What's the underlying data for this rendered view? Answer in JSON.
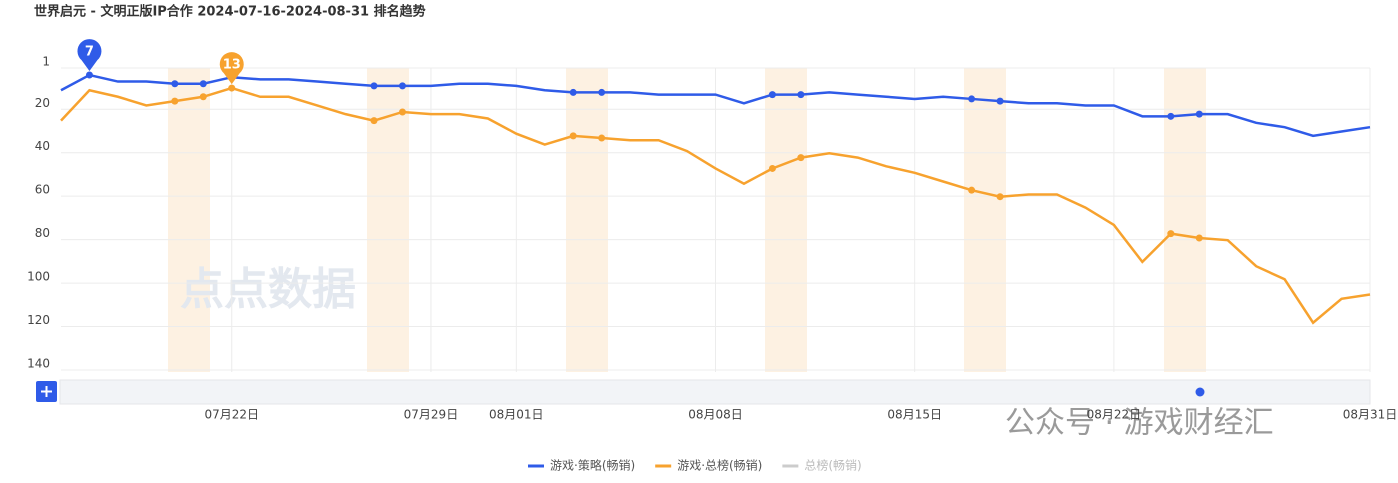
{
  "chart_data": {
    "type": "line",
    "title": "世界启元 - 文明正版IP合作 2024-07-16-2024-08-31 排名趋势",
    "categories": [
      null,
      null,
      null,
      null,
      null,
      null,
      "07月22日",
      null,
      null,
      null,
      null,
      null,
      null,
      "07月29日",
      null,
      null,
      "08月01日",
      null,
      null,
      null,
      null,
      null,
      null,
      "08月08日",
      null,
      null,
      null,
      null,
      null,
      null,
      "08月15日",
      null,
      null,
      null,
      null,
      null,
      null,
      "08月22日",
      null,
      null,
      null,
      null,
      null,
      null,
      null,
      null,
      "08月31日"
    ],
    "series": [
      {
        "name": "游戏·策略(畅销)",
        "color": "#2f5be8",
        "highlight": 7,
        "values": [
          14,
          7,
          10,
          10,
          11,
          11,
          8,
          9,
          9,
          10,
          11,
          12,
          12,
          12,
          11,
          11,
          12,
          14,
          15,
          15,
          15,
          16,
          16,
          16,
          20,
          16,
          16,
          15,
          16,
          17,
          18,
          17,
          18,
          19,
          20,
          20,
          21,
          21,
          26,
          26,
          25,
          25,
          29,
          31,
          35,
          33,
          31
        ]
      },
      {
        "name": "游戏·总榜(畅销)",
        "color": "#f7a22e",
        "highlight": 13,
        "values": [
          28,
          14,
          17,
          21,
          19,
          17,
          13,
          17,
          17,
          21,
          25,
          28,
          24,
          25,
          25,
          27,
          34,
          39,
          35,
          36,
          37,
          37,
          42,
          50,
          57,
          50,
          45,
          43,
          45,
          49,
          52,
          56,
          60,
          63,
          62,
          62,
          68,
          76,
          93,
          80,
          82,
          83,
          95,
          101,
          121,
          110,
          108
        ]
      },
      {
        "name": "总榜(畅销)",
        "color": "#cccccc",
        "values": [
          null,
          null,
          null,
          null,
          null,
          null,
          null,
          null,
          null,
          null,
          null,
          null,
          null,
          null,
          null,
          null,
          null,
          null,
          null,
          null,
          null,
          null,
          null,
          null,
          null,
          null,
          null,
          null,
          null,
          null,
          null,
          null,
          null,
          null,
          null,
          null,
          null,
          null,
          null,
          null,
          null,
          null,
          null,
          null,
          null,
          null,
          null
        ]
      }
    ],
    "ylim": [
      1,
      140
    ],
    "yticks": [
      1,
      20,
      40,
      60,
      80,
      100,
      120,
      140
    ],
    "y_reversed": true,
    "grid": true,
    "legend": "bottom",
    "watermarks": [
      "点点数据",
      "公众号 · 游戏财经汇"
    ]
  }
}
